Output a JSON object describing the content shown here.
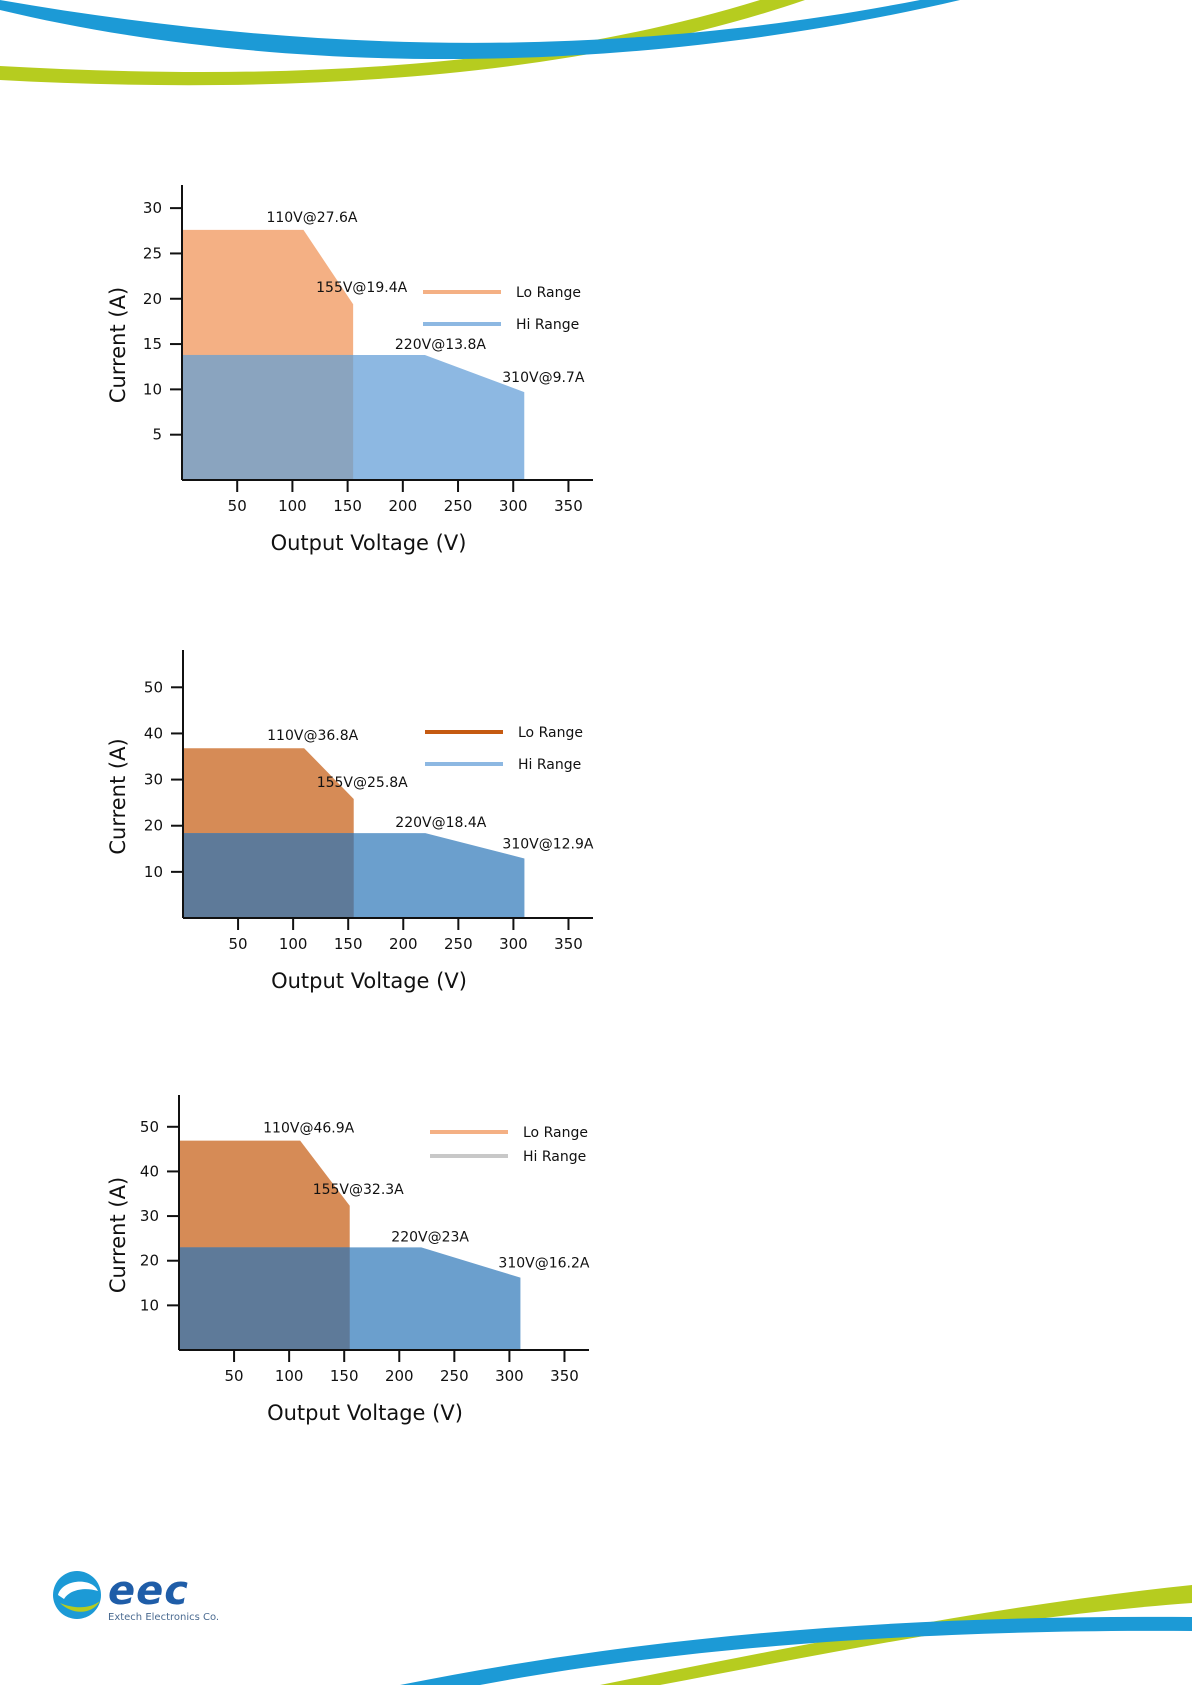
{
  "brand": {
    "logo_text": "eec",
    "company": "Extech Electronics Co.",
    "colors": {
      "blue": "#1c9ad6",
      "green": "#b6cc1f",
      "logo_blue": "#1f5da8"
    }
  },
  "chart_data": [
    {
      "type": "area",
      "xlabel": "Output Voltage (V)",
      "ylabel": "Current (A)",
      "xlim": [
        0,
        365
      ],
      "ylim": [
        0,
        32
      ],
      "xticks": [
        50,
        100,
        150,
        200,
        250,
        300,
        350
      ],
      "yticks": [
        5,
        10,
        15,
        20,
        25,
        30
      ],
      "legend_position": "right",
      "series": [
        {
          "name": "Lo Range",
          "color": "#f4b084",
          "legend_color": "#f4b084",
          "points": [
            [
              0,
              27.6
            ],
            [
              110,
              27.6
            ],
            [
              155,
              19.4
            ],
            [
              155,
              0
            ]
          ]
        },
        {
          "name": "Hi Range",
          "color": "#8db8e2",
          "legend_color": "#8db8e2",
          "points": [
            [
              0,
              13.8
            ],
            [
              220,
              13.8
            ],
            [
              310,
              9.7
            ],
            [
              310,
              0
            ]
          ]
        }
      ],
      "overlap_color": "#8aa4bf",
      "annotations": [
        {
          "text": "110V@27.6A",
          "x": 110,
          "y": 27.6
        },
        {
          "text": "155V@19.4A",
          "x": 155,
          "y": 19.4
        },
        {
          "text": "220V@13.8A",
          "x": 220,
          "y": 13.8
        },
        {
          "text": "310V@9.7A",
          "x": 310,
          "y": 9.7
        }
      ]
    },
    {
      "type": "area",
      "xlabel": "Output Voltage (V)",
      "ylabel": "Current (A)",
      "xlim": [
        0,
        365
      ],
      "ylim": [
        0,
        57
      ],
      "xticks": [
        50,
        100,
        150,
        200,
        250,
        300,
        350
      ],
      "yticks": [
        10,
        20,
        30,
        40,
        50
      ],
      "legend_position": "right",
      "series": [
        {
          "name": "Lo Range",
          "color": "#d68b56",
          "legend_color": "#c55a11",
          "points": [
            [
              0,
              36.8
            ],
            [
              110,
              36.8
            ],
            [
              155,
              25.8
            ],
            [
              155,
              0
            ]
          ]
        },
        {
          "name": "Hi Range",
          "color": "#6b9fcd",
          "legend_color": "#8db8e2",
          "points": [
            [
              0,
              18.4
            ],
            [
              220,
              18.4
            ],
            [
              310,
              12.9
            ],
            [
              310,
              0
            ]
          ]
        }
      ],
      "overlap_color": "#5e7a99",
      "annotations": [
        {
          "text": "110V@36.8A",
          "x": 110,
          "y": 36.8
        },
        {
          "text": "155V@25.8A",
          "x": 155,
          "y": 25.8
        },
        {
          "text": "220V@18.4A",
          "x": 220,
          "y": 18.4
        },
        {
          "text": "310V@12.9A",
          "x": 310,
          "y": 12.9
        }
      ]
    },
    {
      "type": "area",
      "xlabel": "Output Voltage (V)",
      "ylabel": "Current (A)",
      "xlim": [
        0,
        365
      ],
      "ylim": [
        0,
        56
      ],
      "xticks": [
        50,
        100,
        150,
        200,
        250,
        300,
        350
      ],
      "yticks": [
        10,
        20,
        30,
        40,
        50
      ],
      "legend_position": "right",
      "series": [
        {
          "name": "Lo Range",
          "color": "#d68b56",
          "legend_color": "#f4b084",
          "points": [
            [
              0,
              46.9
            ],
            [
              110,
              46.9
            ],
            [
              155,
              32.3
            ],
            [
              155,
              0
            ]
          ]
        },
        {
          "name": "Hi Range",
          "color": "#6b9fcd",
          "legend_color": "#c8c8c8",
          "points": [
            [
              0,
              23
            ],
            [
              220,
              23
            ],
            [
              310,
              16.2
            ],
            [
              310,
              0
            ]
          ]
        }
      ],
      "overlap_color": "#5e7a99",
      "annotations": [
        {
          "text": "110V@46.9A",
          "x": 110,
          "y": 46.9
        },
        {
          "text": "155V@32.3A",
          "x": 155,
          "y": 32.3
        },
        {
          "text": "220V@23A",
          "x": 220,
          "y": 23
        },
        {
          "text": "310V@16.2A",
          "x": 310,
          "y": 16.2
        }
      ]
    }
  ]
}
